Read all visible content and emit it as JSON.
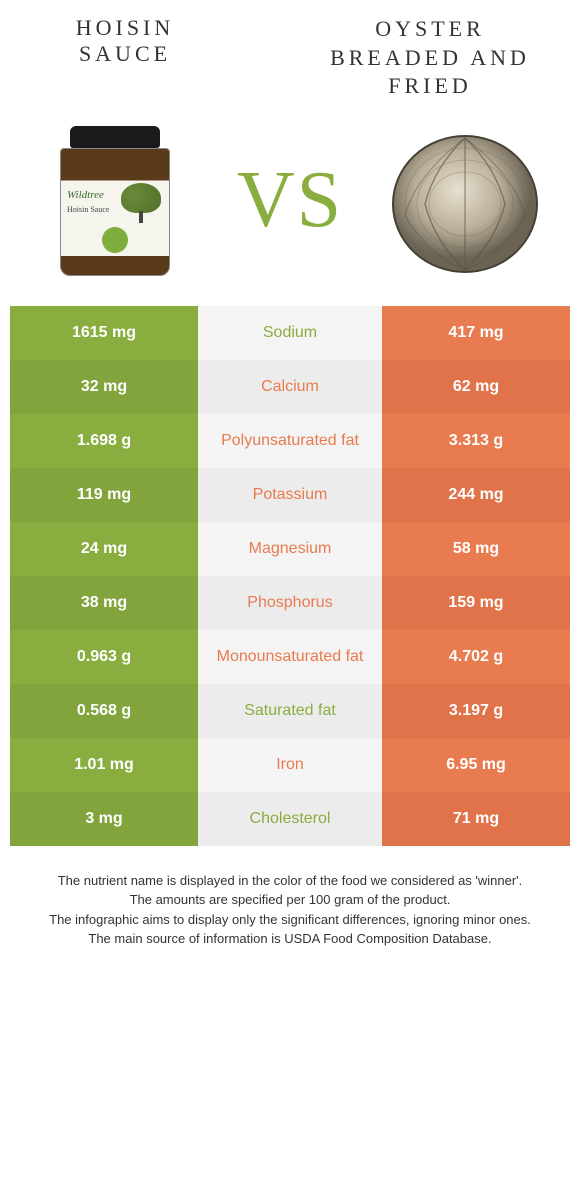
{
  "left": {
    "title": "Hoisin Sauce",
    "color": "#8aad3f",
    "alt_shade": "#82a43c"
  },
  "right": {
    "title": "Oyster breaded and fried",
    "color": "#e87b4f",
    "alt_shade": "#e07349"
  },
  "vs_text": "VS",
  "mid_bg": "#f4f4f4",
  "mid_bg_alt": "#ececec",
  "rows": [
    {
      "left": "1615 mg",
      "label": "Sodium",
      "right": "417 mg",
      "winner": "left"
    },
    {
      "left": "32 mg",
      "label": "Calcium",
      "right": "62 mg",
      "winner": "right"
    },
    {
      "left": "1.698 g",
      "label": "Polyunsaturated fat",
      "right": "3.313 g",
      "winner": "right"
    },
    {
      "left": "119 mg",
      "label": "Potassium",
      "right": "244 mg",
      "winner": "right"
    },
    {
      "left": "24 mg",
      "label": "Magnesium",
      "right": "58 mg",
      "winner": "right"
    },
    {
      "left": "38 mg",
      "label": "Phosphorus",
      "right": "159 mg",
      "winner": "right"
    },
    {
      "left": "0.963 g",
      "label": "Monounsaturated fat",
      "right": "4.702 g",
      "winner": "right"
    },
    {
      "left": "0.568 g",
      "label": "Saturated fat",
      "right": "3.197 g",
      "winner": "left"
    },
    {
      "left": "1.01 mg",
      "label": "Iron",
      "right": "6.95 mg",
      "winner": "right"
    },
    {
      "left": "3 mg",
      "label": "Cholesterol",
      "right": "71 mg",
      "winner": "left"
    }
  ],
  "footer": [
    "The nutrient name is displayed in the color of the food we considered as 'winner'.",
    "The amounts are specified per 100 gram of the product.",
    "The infographic aims to display only the significant differences, ignoring minor ones.",
    "The main source of information is USDA Food Composition Database."
  ],
  "jar_brand": "Wildtree",
  "jar_product": "Hoisin Sauce"
}
